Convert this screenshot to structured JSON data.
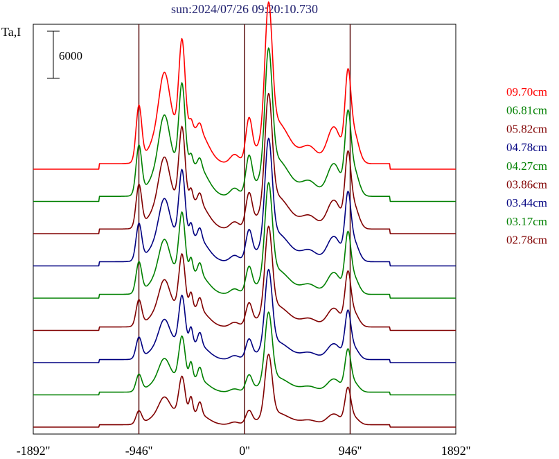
{
  "chart_data": {
    "type": "line",
    "title": "sun:2024/07/26 09:20:10.730",
    "ylabel": "Ta,I",
    "scale_bar_label": "6000",
    "scale_bar_value": 6000,
    "xlim": [
      -1892,
      1892
    ],
    "xticks": [
      {
        "value": -1892,
        "label": "-1892''"
      },
      {
        "value": -946,
        "label": "-946''"
      },
      {
        "value": 0,
        "label": "0''"
      },
      {
        "value": 946,
        "label": "946''"
      },
      {
        "value": 1892,
        "label": "1892''"
      }
    ],
    "vlines": [
      -946,
      0,
      946
    ],
    "grid": false,
    "legend_position": "right",
    "colors": {
      "frame": "#000000",
      "vline": "#5a1010",
      "title": "#1f1f6e"
    },
    "series_order_top_to_bottom": true,
    "series": [
      {
        "name": "09.70cm",
        "color": "#ff0000"
      },
      {
        "name": "06.81cm",
        "color": "#008000"
      },
      {
        "name": "05.82cm",
        "color": "#800000"
      },
      {
        "name": "04.78cm",
        "color": "#000080"
      },
      {
        "name": "04.27cm",
        "color": "#008000"
      },
      {
        "name": "03.86cm",
        "color": "#800000"
      },
      {
        "name": "03.44cm",
        "color": "#000080"
      },
      {
        "name": "03.17cm",
        "color": "#008000"
      },
      {
        "name": "02.78cm",
        "color": "#800000"
      }
    ]
  }
}
